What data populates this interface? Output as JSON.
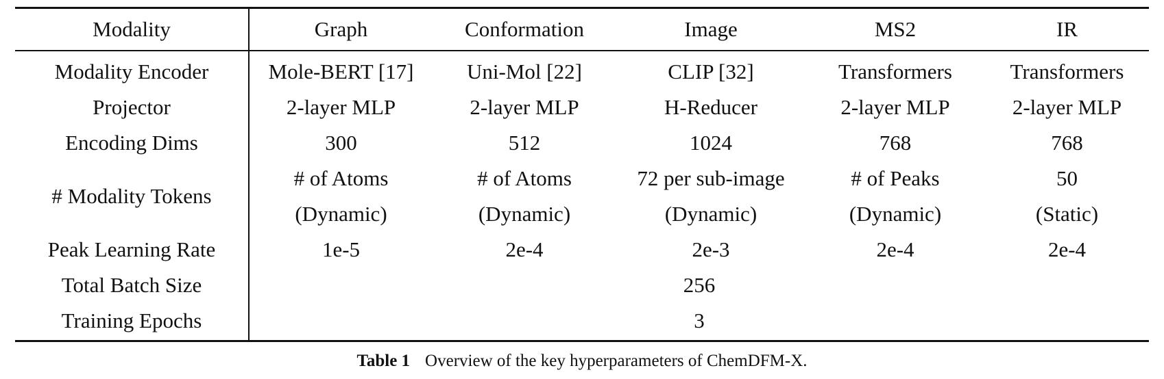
{
  "table": {
    "headers": [
      "Modality",
      "Graph",
      "Conformation",
      "Image",
      "MS2",
      "IR"
    ],
    "rows": {
      "encoder": [
        "Modality Encoder",
        "Mole-BERT [17]",
        "Uni-Mol [22]",
        "CLIP [32]",
        "Transformers",
        "Transformers"
      ],
      "projector": [
        "Projector",
        "2-layer MLP",
        "2-layer MLP",
        "H-Reducer",
        "2-layer MLP",
        "2-layer MLP"
      ],
      "dims": [
        "Encoding Dims",
        "300",
        "512",
        "1024",
        "768",
        "768"
      ],
      "tokens_label": "# Modality Tokens",
      "tokens_line1": [
        "# of Atoms",
        "# of Atoms",
        "72 per sub-image",
        "# of Peaks",
        "50"
      ],
      "tokens_line2": [
        "(Dynamic)",
        "(Dynamic)",
        "(Dynamic)",
        "(Dynamic)",
        "(Static)"
      ],
      "lr": [
        "Peak Learning Rate",
        "1e-5",
        "2e-4",
        "2e-3",
        "2e-4",
        "2e-4"
      ],
      "batch": [
        "Total Batch Size",
        "256"
      ],
      "epochs": [
        "Training Epochs",
        "3"
      ]
    }
  },
  "caption": {
    "label": "Table 1",
    "text": "Overview of the key hyperparameters of ChemDFM-X."
  }
}
